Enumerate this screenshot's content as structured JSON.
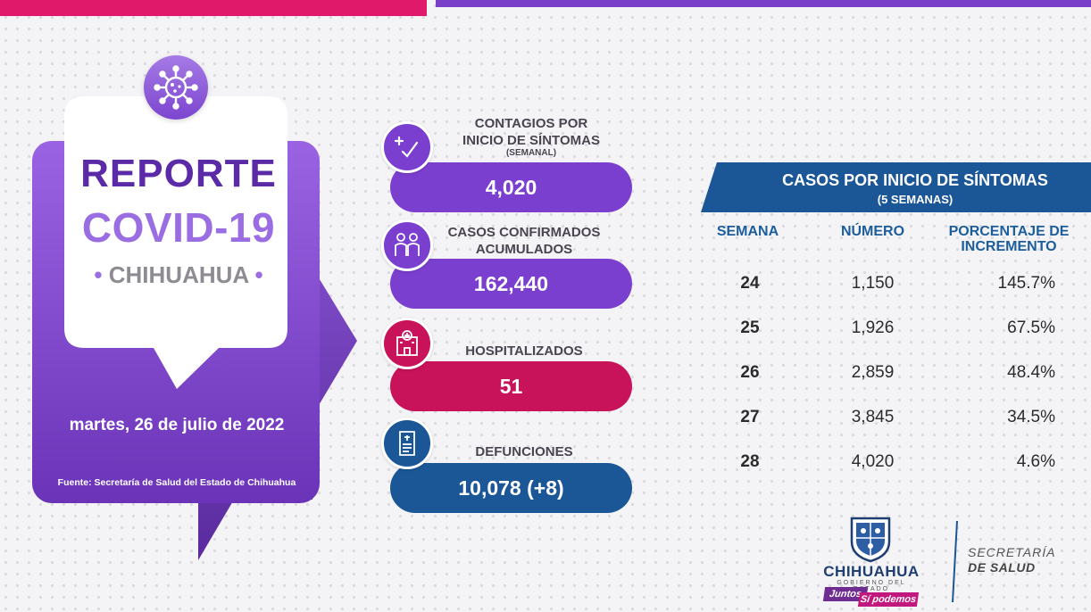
{
  "header": {
    "title_line1": "REPORTE",
    "title_line2": "COVID-19",
    "title_line3": "CHIHUAHUA",
    "date": "martes, 26 de julio de 2022",
    "source": "Fuente: Secretaría de Salud del Estado de Chihuahua"
  },
  "stats": {
    "contagios": {
      "label_line1": "CONTAGIOS POR",
      "label_line2": "INICIO DE SÍNTOMAS",
      "sublabel": "(SEMANAL)",
      "value": "4,020",
      "color": "#7b3fcf"
    },
    "confirmados": {
      "label_line1": "CASOS CONFIRMADOS",
      "label_line2": "ACUMULADOS",
      "value": "162,440",
      "color": "#7b3fcf"
    },
    "hospitalizados": {
      "label": "HOSPITALIZADOS",
      "value": "51",
      "color": "#c8125a"
    },
    "defunciones": {
      "label": "DEFUNCIONES",
      "value": "10,078 (+8)",
      "color": "#1b5696"
    }
  },
  "table": {
    "title": "CASOS POR INICIO DE SÍNTOMAS",
    "subtitle": "(5 SEMANAS)",
    "columns": {
      "week": "SEMANA",
      "number": "NÚMERO",
      "pct_line1": "PORCENTAJE DE",
      "pct_line2": "INCREMENTO"
    },
    "rows": [
      {
        "week": "24",
        "number": "1,150",
        "pct": "145.7%"
      },
      {
        "week": "25",
        "number": "1,926",
        "pct": "67.5%"
      },
      {
        "week": "26",
        "number": "2,859",
        "pct": "48.4%"
      },
      {
        "week": "27",
        "number": "3,845",
        "pct": "34.5%"
      },
      {
        "week": "28",
        "number": "4,020",
        "pct": "4.6%"
      }
    ]
  },
  "footer": {
    "logo_name": "CHIHUAHUA",
    "logo_subtitle": "GOBIERNO DEL ESTADO",
    "slogan_part1": "Juntos",
    "slogan_part2": "Sí podemos",
    "dept_line1": "SECRETARÍA",
    "dept_line2": "DE SALUD"
  },
  "colors": {
    "brand_purple": "#7b3fcf",
    "brand_pink": "#c8125a",
    "brand_blue": "#1b5696",
    "accent_pink_bar": "#e0196b"
  }
}
